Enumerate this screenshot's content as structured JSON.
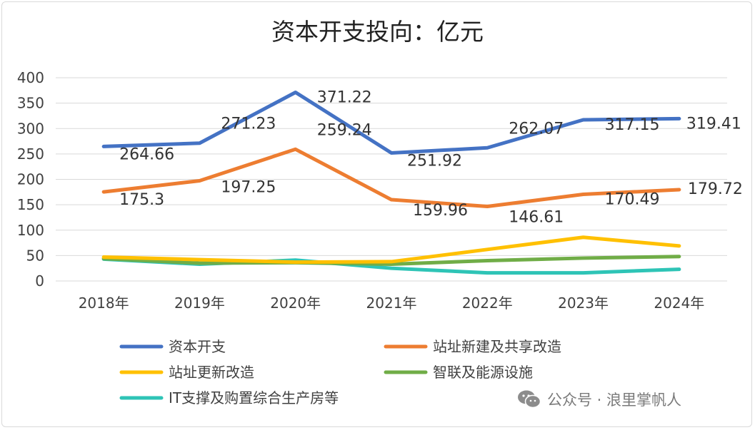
{
  "chart_data": {
    "type": "line",
    "title": "资本开支投向：亿元",
    "categories": [
      "2018年",
      "2019年",
      "2020年",
      "2021年",
      "2022年",
      "2023年",
      "2024年"
    ],
    "ylim": [
      0,
      400
    ],
    "yticks": [
      0,
      50,
      100,
      150,
      200,
      250,
      300,
      350,
      400
    ],
    "grid": true,
    "legend_position": "bottom",
    "series": [
      {
        "name": "资本开支",
        "color": "#4472C4",
        "labeled": true,
        "values": [
          264.66,
          271.23,
          371.22,
          251.92,
          262.07,
          317.15,
          319.41
        ]
      },
      {
        "name": "站址新建及共享改造",
        "color": "#ED7D31",
        "labeled": true,
        "values": [
          175.3,
          197.25,
          259.24,
          159.96,
          146.61,
          170.49,
          179.72
        ]
      },
      {
        "name": "站址更新改造",
        "color": "#FFC000",
        "labeled": false,
        "values": [
          47,
          42,
          37,
          38,
          62,
          86,
          69
        ]
      },
      {
        "name": "智联及能源设施",
        "color": "#70AD47",
        "labeled": false,
        "values": [
          44,
          35,
          36,
          33,
          40,
          45,
          48
        ]
      },
      {
        "name": "IT支撑及购置综合生产房等",
        "color": "#2EC4B6",
        "labeled": false,
        "values": [
          43,
          33,
          41,
          25,
          16,
          16,
          23
        ]
      }
    ]
  },
  "watermark": {
    "text": "公众号 · 浪里掌帆人",
    "icon": "wechat-icon"
  }
}
